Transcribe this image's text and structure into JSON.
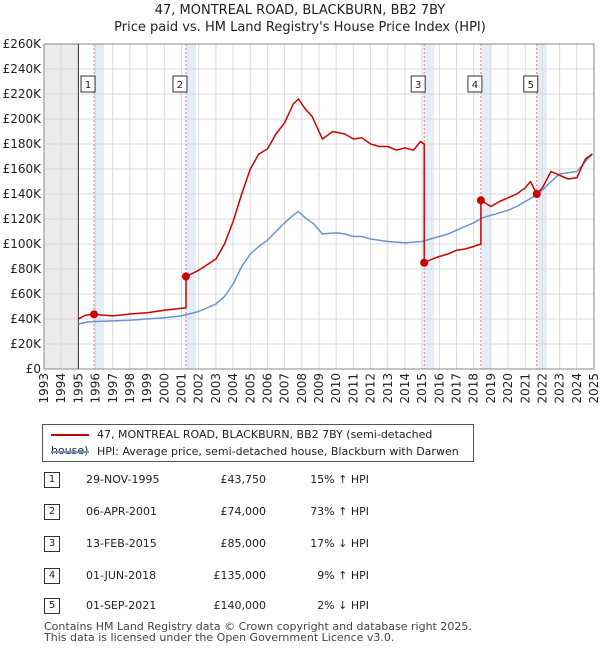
{
  "chart_data": {
    "type": "line",
    "title": "47, MONTREAL ROAD, BLACKBURN, BB2 7BY",
    "subtitle": "Price paid vs. HM Land Registry's House Price Index (HPI)",
    "xlim": [
      1993,
      2025
    ],
    "ylim": [
      0,
      260000
    ],
    "x_ticks": [
      "1993",
      "1994",
      "1995",
      "1996",
      "1997",
      "1998",
      "1999",
      "2000",
      "2001",
      "2002",
      "2003",
      "2004",
      "2005",
      "2006",
      "2007",
      "2008",
      "2009",
      "2010",
      "2011",
      "2012",
      "2013",
      "2014",
      "2015",
      "2016",
      "2017",
      "2018",
      "2019",
      "2020",
      "2021",
      "2022",
      "2023",
      "2024",
      "2025"
    ],
    "y_ticks": [
      "£0",
      "£20K",
      "£40K",
      "£60K",
      "£80K",
      "£100K",
      "£120K",
      "£140K",
      "£160K",
      "£180K",
      "£200K",
      "£220K",
      "£240K",
      "£260K"
    ],
    "y_tick_values": [
      0,
      20000,
      40000,
      60000,
      80000,
      100000,
      120000,
      140000,
      160000,
      180000,
      200000,
      220000,
      240000,
      260000
    ],
    "data_start_year": 1995,
    "series": [
      {
        "name": "47, MONTREAL ROAD, BLACKBURN, BB2 7BY (semi-detached house)",
        "color": "#cc0000",
        "points": [
          [
            1995.0,
            40000
          ],
          [
            1995.4,
            43000
          ],
          [
            1995.91,
            43750
          ],
          [
            1996.5,
            43000
          ],
          [
            1997,
            42500
          ],
          [
            1998,
            44000
          ],
          [
            1999,
            45000
          ],
          [
            2000,
            47000
          ],
          [
            2001.26,
            49000
          ],
          [
            2001.26,
            74000
          ],
          [
            2002,
            79000
          ],
          [
            2003,
            88000
          ],
          [
            2003.5,
            100000
          ],
          [
            2004,
            118000
          ],
          [
            2004.5,
            140000
          ],
          [
            2005,
            160000
          ],
          [
            2005.5,
            172000
          ],
          [
            2006,
            176000
          ],
          [
            2006.5,
            188000
          ],
          [
            2007,
            197000
          ],
          [
            2007.5,
            212000
          ],
          [
            2007.8,
            216000
          ],
          [
            2008.2,
            208000
          ],
          [
            2008.6,
            202000
          ],
          [
            2009.2,
            184000
          ],
          [
            2009.8,
            190000
          ],
          [
            2010.5,
            188000
          ],
          [
            2011,
            184000
          ],
          [
            2011.5,
            185000
          ],
          [
            2012,
            180000
          ],
          [
            2012.5,
            178000
          ],
          [
            2013,
            178000
          ],
          [
            2013.5,
            175000
          ],
          [
            2014,
            177000
          ],
          [
            2014.5,
            175000
          ],
          [
            2014.9,
            182000
          ],
          [
            2015.12,
            180000
          ],
          [
            2015.12,
            85000
          ],
          [
            2015.6,
            88000
          ],
          [
            2016,
            90000
          ],
          [
            2016.5,
            92000
          ],
          [
            2017,
            95000
          ],
          [
            2017.5,
            96000
          ],
          [
            2018.0,
            98000
          ],
          [
            2018.42,
            100000
          ],
          [
            2018.42,
            135000
          ],
          [
            2019,
            130000
          ],
          [
            2019.5,
            134000
          ],
          [
            2020,
            137000
          ],
          [
            2020.5,
            140000
          ],
          [
            2021,
            145000
          ],
          [
            2021.3,
            150000
          ],
          [
            2021.67,
            140000
          ],
          [
            2022,
            145000
          ],
          [
            2022.5,
            158000
          ],
          [
            2023,
            155000
          ],
          [
            2023.5,
            152000
          ],
          [
            2024,
            153000
          ],
          [
            2024.5,
            168000
          ],
          [
            2024.9,
            172000
          ]
        ]
      },
      {
        "name": "HPI: Average price, semi-detached house, Blackburn with Darwen",
        "color": "#6a95cf",
        "points": [
          [
            1995.0,
            36000
          ],
          [
            1995.5,
            37500
          ],
          [
            1996,
            38000
          ],
          [
            1997,
            38500
          ],
          [
            1998,
            39000
          ],
          [
            1999,
            40000
          ],
          [
            2000,
            41000
          ],
          [
            2001,
            42500
          ],
          [
            2002,
            46000
          ],
          [
            2003,
            52000
          ],
          [
            2003.5,
            58000
          ],
          [
            2004,
            68000
          ],
          [
            2004.5,
            82000
          ],
          [
            2005,
            92000
          ],
          [
            2005.5,
            98000
          ],
          [
            2006,
            103000
          ],
          [
            2006.5,
            110000
          ],
          [
            2007,
            117000
          ],
          [
            2007.5,
            123000
          ],
          [
            2007.8,
            126000
          ],
          [
            2008.2,
            121000
          ],
          [
            2008.7,
            116000
          ],
          [
            2009.2,
            108000
          ],
          [
            2010,
            109000
          ],
          [
            2010.5,
            108000
          ],
          [
            2011,
            106000
          ],
          [
            2011.5,
            106000
          ],
          [
            2012,
            104000
          ],
          [
            2013,
            102000
          ],
          [
            2014,
            101000
          ],
          [
            2015,
            102000
          ],
          [
            2015.5,
            104000
          ],
          [
            2016,
            106000
          ],
          [
            2016.5,
            108000
          ],
          [
            2017,
            111000
          ],
          [
            2017.5,
            114000
          ],
          [
            2018,
            117000
          ],
          [
            2018.5,
            121000
          ],
          [
            2019,
            123000
          ],
          [
            2019.5,
            125000
          ],
          [
            2020,
            127000
          ],
          [
            2020.5,
            130000
          ],
          [
            2021,
            134000
          ],
          [
            2021.5,
            138000
          ],
          [
            2022,
            143000
          ],
          [
            2022.5,
            150000
          ],
          [
            2023,
            156000
          ],
          [
            2023.5,
            157000
          ],
          [
            2024,
            158000
          ],
          [
            2024.5,
            166000
          ],
          [
            2024.9,
            172000
          ]
        ]
      }
    ],
    "sales": [
      {
        "num": "1",
        "year": 1995.91,
        "price": 43750,
        "date": "29-NOV-1995",
        "price_label": "£43,750",
        "hpi": "15% ↑ HPI"
      },
      {
        "num": "2",
        "year": 2001.26,
        "price": 74000,
        "date": "06-APR-2001",
        "price_label": "£74,000",
        "hpi": "73% ↑ HPI"
      },
      {
        "num": "3",
        "year": 2015.12,
        "price": 85000,
        "date": "13-FEB-2015",
        "price_label": "£85,000",
        "hpi": "17% ↓ HPI"
      },
      {
        "num": "4",
        "year": 2018.42,
        "price": 135000,
        "date": "01-JUN-2018",
        "price_label": "£135,000",
        "hpi": "9% ↑ HPI"
      },
      {
        "num": "5",
        "year": 2021.67,
        "price": 140000,
        "date": "01-SEP-2021",
        "price_label": "£140,000",
        "hpi": "2% ↓ HPI"
      }
    ],
    "colors": {
      "price_line": "#cc0000",
      "hpi_line": "#6a95cf",
      "marker": "#cc0000",
      "band": "#dde5f3",
      "grid": "#d9d9d9",
      "vline": "#e08080"
    }
  },
  "legend": {
    "price_label": "47, MONTREAL ROAD, BLACKBURN, BB2 7BY (semi-detached house)",
    "hpi_label": "HPI: Average price, semi-detached house, Blackburn with Darwen"
  },
  "footer": {
    "line1": "Contains HM Land Registry data © Crown copyright and database right 2025.",
    "line2": "This data is licensed under the Open Government Licence v3.0."
  }
}
